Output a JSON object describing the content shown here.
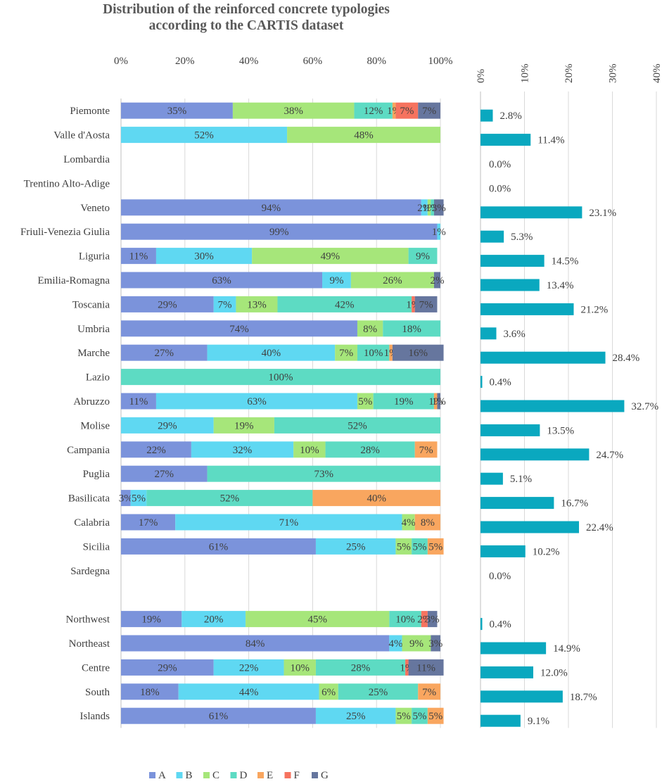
{
  "title_lines": [
    "Distribution of the reinforced concrete typologies",
    "according to the CARTIS dataset"
  ],
  "colors": {
    "A": "#7b93db",
    "B": "#5fd8f2",
    "C": "#a6e67a",
    "D": "#5ddbc3",
    "E": "#f9a65f",
    "F": "#f6735f",
    "G": "#66769e",
    "share_bar": "#0aa8bf",
    "grid": "#d9d9d9",
    "axis": "#bfbfbf",
    "text": "#404040"
  },
  "chart_data": [
    {
      "type": "bar",
      "orientation": "horizontal",
      "stacked": true,
      "title": "Distribution of the reinforced concrete typologies according to the CARTIS dataset",
      "xlim": [
        0,
        100
      ],
      "x_ticks": [
        "0%",
        "20%",
        "40%",
        "60%",
        "80%",
        "100%"
      ],
      "x_tick_values": [
        0,
        20,
        40,
        60,
        80,
        100
      ],
      "categories": [
        "Piemonte",
        "Valle d'Aosta",
        "Lombardia",
        "Trentino Alto-Adige",
        "Veneto",
        "Friuli-Venezia Giulia",
        "Liguria",
        "Emilia-Romagna",
        "Toscania",
        "Umbria",
        "Marche",
        "Lazio",
        "Abruzzo",
        "Molise",
        "Campania",
        "Puglia",
        "Basilicata",
        "Calabria",
        "Sicilia",
        "Sardegna",
        "",
        "Northwest",
        "Northeast",
        "Centre",
        "South",
        "Islands"
      ],
      "series": [
        {
          "name": "A",
          "values": [
            35,
            0,
            0,
            0,
            94,
            99,
            11,
            63,
            29,
            74,
            27,
            0,
            11,
            0,
            22,
            27,
            3,
            17,
            61,
            0,
            null,
            19,
            84,
            29,
            18,
            61
          ]
        },
        {
          "name": "B",
          "values": [
            0,
            52,
            0,
            0,
            2,
            1,
            30,
            9,
            7,
            0,
            40,
            0,
            63,
            29,
            32,
            0,
            5,
            71,
            25,
            0,
            null,
            20,
            4,
            22,
            44,
            25
          ]
        },
        {
          "name": "C",
          "values": [
            38,
            48,
            0,
            0,
            1,
            0,
            49,
            26,
            13,
            8,
            7,
            0,
            5,
            19,
            10,
            0,
            0,
            4,
            5,
            0,
            null,
            45,
            9,
            10,
            6,
            5
          ]
        },
        {
          "name": "D",
          "values": [
            12,
            0,
            0,
            0,
            1,
            0,
            9,
            0,
            42,
            18,
            10,
            100,
            19,
            52,
            28,
            73,
            52,
            0,
            5,
            0,
            null,
            10,
            0,
            28,
            25,
            5
          ]
        },
        {
          "name": "E",
          "values": [
            1,
            0,
            0,
            0,
            0,
            0,
            0,
            0,
            0,
            0,
            1,
            0,
            1,
            0,
            7,
            0,
            40,
            8,
            5,
            0,
            null,
            0,
            0,
            0,
            7,
            5
          ]
        },
        {
          "name": "F",
          "values": [
            7,
            0,
            0,
            0,
            0,
            0,
            0,
            0,
            1,
            0,
            0,
            0,
            0,
            0,
            0,
            0,
            0,
            0,
            0,
            0,
            null,
            2,
            0,
            1,
            0,
            0
          ]
        },
        {
          "name": "G",
          "values": [
            7,
            0,
            0,
            0,
            3,
            0,
            0,
            2,
            7,
            0,
            16,
            0,
            1,
            0,
            0,
            0,
            0,
            0,
            0,
            0,
            null,
            3,
            3,
            11,
            0,
            0
          ]
        }
      ],
      "legend": [
        "A",
        "B",
        "C",
        "D",
        "E",
        "F",
        "G"
      ],
      "legend_position": "bottom"
    },
    {
      "type": "bar",
      "orientation": "horizontal",
      "xlim": [
        0,
        40
      ],
      "x_ticks": [
        "0%",
        "10%",
        "20%",
        "30%",
        "40%"
      ],
      "x_tick_values": [
        0,
        10,
        20,
        30,
        40
      ],
      "categories": [
        "Piemonte",
        "Valle d'Aosta",
        "Lombardia",
        "Trentino Alto-Adige",
        "Veneto",
        "Friuli-Venezia Giulia",
        "Liguria",
        "Emilia-Romagna",
        "Toscania",
        "Umbria",
        "Marche",
        "Lazio",
        "Abruzzo",
        "Molise",
        "Campania",
        "Puglia",
        "Basilicata",
        "Calabria",
        "Sicilia",
        "Sardegna",
        "",
        "Northwest",
        "Northeast",
        "Centre",
        "South",
        "Islands"
      ],
      "values": [
        2.8,
        11.4,
        0.0,
        0.0,
        23.1,
        5.3,
        14.5,
        13.4,
        21.2,
        3.6,
        28.4,
        0.4,
        32.7,
        13.5,
        24.7,
        5.1,
        16.7,
        22.4,
        10.2,
        0.0,
        null,
        0.4,
        14.9,
        12.0,
        18.7,
        9.1
      ],
      "labels": [
        "2.8%",
        "11.4%",
        "0.0%",
        "0.0%",
        "23.1%",
        "5.3%",
        "14.5%",
        "13.4%",
        "21.2%",
        "3.6%",
        "28.4%",
        "0.4%",
        "32.7%",
        "13.5%",
        "24.7%",
        "5.1%",
        "16.7%",
        "22.4%",
        "10.2%",
        "0.0%",
        "",
        "0.4%",
        "14.9%",
        "12.0%",
        "18.7%",
        "9.1%"
      ]
    }
  ]
}
